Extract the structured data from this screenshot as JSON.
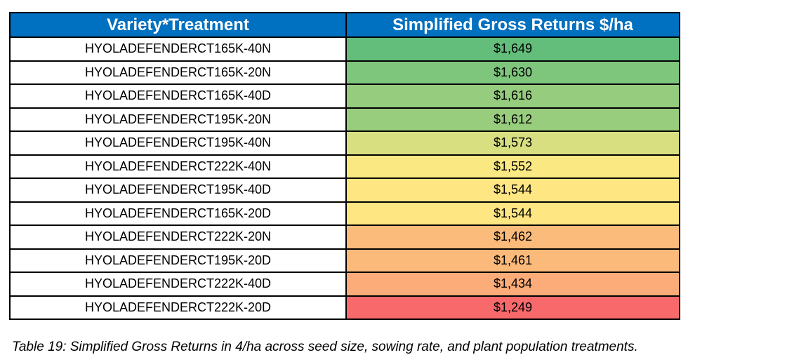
{
  "table": {
    "headers": [
      "Variety*Treatment",
      "Simplified Gross Returns $/ha"
    ],
    "rows": [
      {
        "treatment": "HYOLADEFENDERCT165K-40N",
        "value": "$1,649",
        "color": "#63be7b"
      },
      {
        "treatment": "HYOLADEFENDERCT165K-20N",
        "value": "$1,630",
        "color": "#7fc67d"
      },
      {
        "treatment": "HYOLADEFENDERCT165K-40D",
        "value": "$1,616",
        "color": "#95cc7e"
      },
      {
        "treatment": "HYOLADEFENDERCT195K-20N",
        "value": "$1,612",
        "color": "#99cd7e"
      },
      {
        "treatment": "HYOLADEFENDERCT195K-40N",
        "value": "$1,573",
        "color": "#d8df81"
      },
      {
        "treatment": "HYOLADEFENDERCT222K-40N",
        "value": "$1,552",
        "color": "#fae883"
      },
      {
        "treatment": "HYOLADEFENDERCT195K-40D",
        "value": "$1,544",
        "color": "#fee683"
      },
      {
        "treatment": "HYOLADEFENDERCT165K-20D",
        "value": "$1,544",
        "color": "#fee683"
      },
      {
        "treatment": "HYOLADEFENDERCT222K-20N",
        "value": "$1,462",
        "color": "#fbbb7a"
      },
      {
        "treatment": "HYOLADEFENDERCT195K-20D",
        "value": "$1,461",
        "color": "#fbba7a"
      },
      {
        "treatment": "HYOLADEFENDERCT222K-40D",
        "value": "$1,434",
        "color": "#fbac78"
      },
      {
        "treatment": "HYOLADEFENDERCT222K-20D",
        "value": "$1,249",
        "color": "#f8696b"
      }
    ]
  },
  "caption": "Table 19: Simplified Gross Returns in 4/ha across seed size, sowing rate, and plant population treatments.",
  "colors": {
    "header_bg": "#0070c0",
    "header_text": "#ffffff"
  }
}
